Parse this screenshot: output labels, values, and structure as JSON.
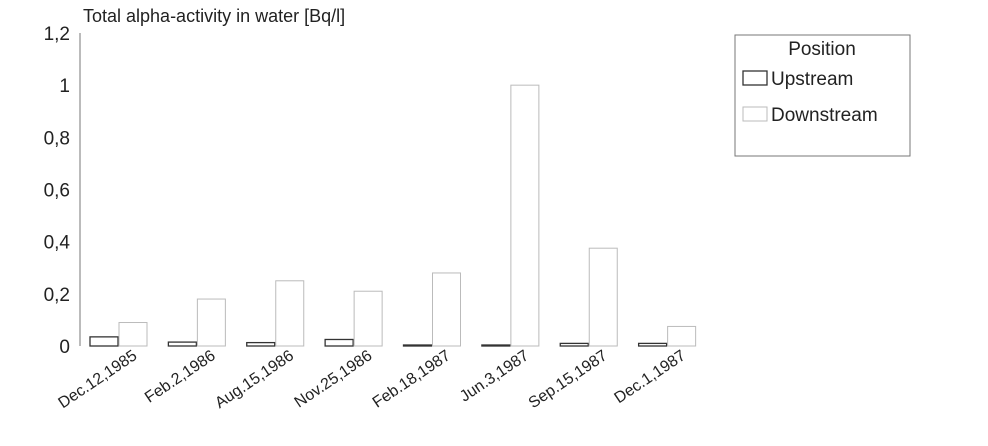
{
  "chart_data": {
    "type": "bar",
    "title": "Total alpha-activity in water [Bq/l]",
    "categories": [
      "Dec.12,1985",
      "Feb.2,1986",
      "Aug.15,1986",
      "Nov.25,1986",
      "Feb.18,1987",
      "Jun.3,1987",
      "Sep.15,1987",
      "Dec.1,1987"
    ],
    "series": [
      {
        "name": "Upstream",
        "values": [
          0.035,
          0.015,
          0.013,
          0.025,
          0.003,
          0.002,
          0.01,
          0.01
        ]
      },
      {
        "name": "Downstream",
        "values": [
          0.09,
          0.18,
          0.25,
          0.21,
          0.28,
          1.0,
          0.375,
          0.075
        ]
      }
    ],
    "yticks": [
      "0",
      "0,2",
      "0,4",
      "0,6",
      "0,8",
      "1",
      "1,2"
    ],
    "ylim": [
      0,
      1.2
    ],
    "legend": {
      "title": "Position",
      "position": "top-right"
    },
    "grid": false
  }
}
